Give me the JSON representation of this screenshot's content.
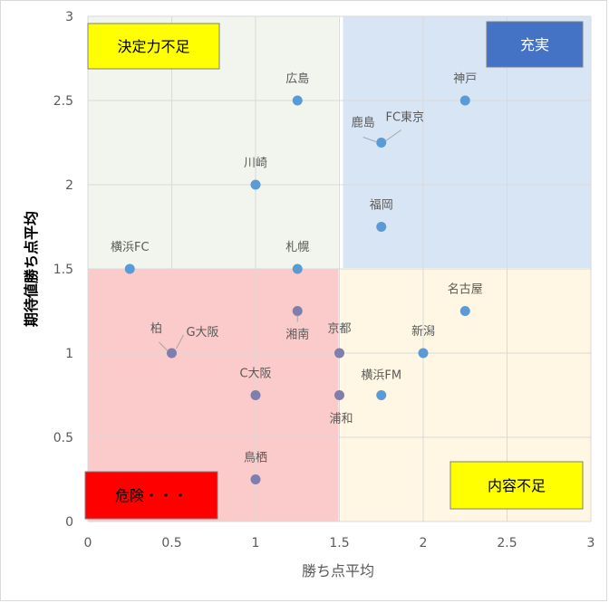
{
  "chart_data": {
    "type": "scatter",
    "title": "",
    "xlabel": "勝ち点平均",
    "ylabel": "期待値勝ち点平均",
    "xlim": [
      0,
      3
    ],
    "ylim": [
      0,
      3
    ],
    "x_ticks": [
      "0",
      "0.5",
      "1",
      "1.5",
      "2",
      "2.5",
      "3"
    ],
    "y_ticks": [
      "0",
      "0.5",
      "1",
      "1.5",
      "2",
      "2.5",
      "3"
    ],
    "grid": true,
    "points": [
      {
        "label": "広島",
        "x": 1.25,
        "y": 2.5
      },
      {
        "label": "神戸",
        "x": 2.25,
        "y": 2.5
      },
      {
        "label": "鹿島",
        "x": 1.75,
        "y": 2.25
      },
      {
        "label": "FC東京",
        "x": 1.75,
        "y": 2.25
      },
      {
        "label": "川崎",
        "x": 1.0,
        "y": 2.0
      },
      {
        "label": "福岡",
        "x": 1.75,
        "y": 1.75
      },
      {
        "label": "横浜FC",
        "x": 0.25,
        "y": 1.5
      },
      {
        "label": "札幌",
        "x": 1.25,
        "y": 1.5
      },
      {
        "label": "名古屋",
        "x": 2.25,
        "y": 1.25
      },
      {
        "label": "湘南",
        "x": 1.25,
        "y": 1.25
      },
      {
        "label": "柏",
        "x": 0.5,
        "y": 1.0
      },
      {
        "label": "G大阪",
        "x": 0.5,
        "y": 1.0
      },
      {
        "label": "京都",
        "x": 1.5,
        "y": 1.0
      },
      {
        "label": "新潟",
        "x": 2.0,
        "y": 1.0
      },
      {
        "label": "C大阪",
        "x": 1.0,
        "y": 0.75
      },
      {
        "label": "浦和",
        "x": 1.5,
        "y": 0.75
      },
      {
        "label": "横浜FM",
        "x": 1.75,
        "y": 0.75
      },
      {
        "label": "鳥栖",
        "x": 1.0,
        "y": 0.25
      }
    ],
    "quadrants": [
      {
        "name": "決定力不足",
        "x_range": [
          0,
          1.5
        ],
        "y_range": [
          1.5,
          3
        ],
        "fill": "#f1f5ee"
      },
      {
        "name": "充実",
        "x_range": [
          1.5,
          3
        ],
        "y_range": [
          1.5,
          3
        ],
        "fill": "#d7e5f5"
      },
      {
        "name": "危険・・・",
        "x_range": [
          0,
          1.5
        ],
        "y_range": [
          0,
          1.5
        ],
        "fill": "#fbcaca"
      },
      {
        "name": "内容不足",
        "x_range": [
          1.5,
          3
        ],
        "y_range": [
          0,
          1.5
        ],
        "fill": "#fff7e3"
      }
    ],
    "quadrant_labels": [
      {
        "text": "決定力不足",
        "bg": "#ffff00",
        "color": "#000000"
      },
      {
        "text": "充実",
        "bg": "#4472c4",
        "color": "#ffffff"
      },
      {
        "text": "危険・・・",
        "bg": "#ff0000",
        "color": "#000000"
      },
      {
        "text": "内容不足",
        "bg": "#ffff00",
        "color": "#000000"
      }
    ],
    "marker_color": "#5b9bd5"
  }
}
